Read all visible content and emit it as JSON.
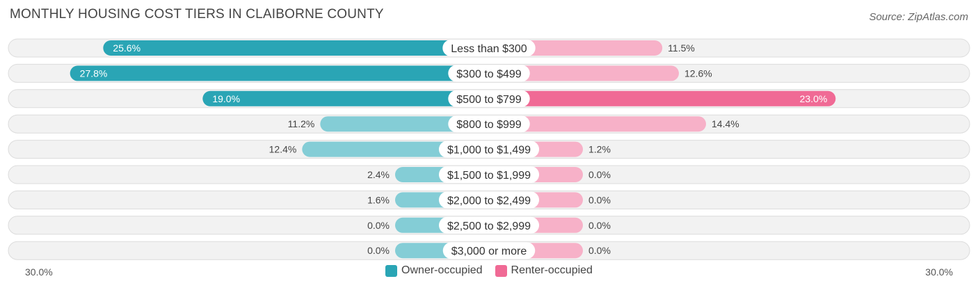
{
  "chart_data": {
    "type": "bar",
    "orientation": "horizontal-diverging",
    "title": "MONTHLY HOUSING COST TIERS IN CLAIBORNE COUNTY",
    "source": "Source: ZipAtlas.com",
    "categories": [
      "Less than $300",
      "$300 to $499",
      "$500 to $799",
      "$800 to $999",
      "$1,000 to $1,499",
      "$1,500 to $1,999",
      "$2,000 to $2,499",
      "$2,500 to $2,999",
      "$3,000 or more"
    ],
    "series": [
      {
        "name": "Owner-occupied",
        "side": "left",
        "values": [
          25.6,
          27.8,
          19.0,
          11.2,
          12.4,
          2.4,
          1.6,
          0.0,
          0.0
        ],
        "labels": [
          "25.6%",
          "27.8%",
          "19.0%",
          "11.2%",
          "12.4%",
          "2.4%",
          "1.6%",
          "0.0%",
          "0.0%"
        ]
      },
      {
        "name": "Renter-occupied",
        "side": "right",
        "values": [
          11.5,
          12.6,
          23.0,
          14.4,
          1.2,
          0.0,
          0.0,
          0.0,
          0.0
        ],
        "labels": [
          "11.5%",
          "12.6%",
          "23.0%",
          "14.4%",
          "1.2%",
          "0.0%",
          "0.0%",
          "0.0%",
          "0.0%"
        ]
      }
    ],
    "xlim": [
      0,
      30
    ],
    "axis_left_label": "30.0%",
    "axis_right_label": "30.0%",
    "legend_position": "bottom-center"
  },
  "colors": {
    "owner_strong": "#2aa5b5",
    "owner_light": "#84cdd6",
    "renter_strong": "#f06a95",
    "renter_light": "#f7b1c8",
    "value_on_bar": "#ffffff",
    "value_off_bar": "#444444"
  }
}
